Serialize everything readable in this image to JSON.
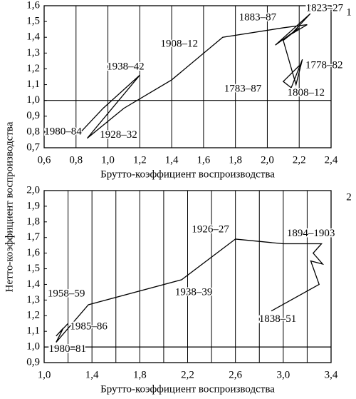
{
  "shared_ylabel": "Нетто-коэффициент воспроизводства",
  "chart_data": [
    {
      "type": "line",
      "panel_label": "1",
      "xlabel": "Брутто-коэффициент воспроизводства",
      "xlim": [
        0.6,
        2.4
      ],
      "xticks": [
        {
          "value": 0.6,
          "label": "0,6"
        },
        {
          "value": 0.8,
          "label": "0,8"
        },
        {
          "value": 1.0,
          "label": "1,0"
        },
        {
          "value": 1.2,
          "label": "1,2"
        },
        {
          "value": 1.4,
          "label": "1,4"
        },
        {
          "value": 1.6,
          "label": "1,6"
        },
        {
          "value": 1.8,
          "label": "1,8"
        },
        {
          "value": 2.0,
          "label": "2,0"
        },
        {
          "value": 2.2,
          "label": "2,2"
        },
        {
          "value": 2.4,
          "label": "2,4"
        }
      ],
      "ylim": [
        0.7,
        1.6
      ],
      "yticks": [
        {
          "value": 0.7,
          "label": "0,7"
        },
        {
          "value": 0.8,
          "label": "0,8"
        },
        {
          "value": 0.9,
          "label": "0,9"
        },
        {
          "value": 1.0,
          "label": "1,0"
        },
        {
          "value": 1.1,
          "label": "1,1"
        },
        {
          "value": 1.2,
          "label": "1,2"
        },
        {
          "value": 1.3,
          "label": "1,3"
        },
        {
          "value": 1.4,
          "label": "1,4"
        },
        {
          "value": 1.5,
          "label": "1,5"
        },
        {
          "value": 1.6,
          "label": "1,6"
        }
      ],
      "grid_x": true,
      "x_minor": [],
      "reference_line": 1.0,
      "color": "#000000",
      "x": [
        2.2,
        2.1,
        2.15,
        2.22,
        2.18,
        2.1,
        2.2,
        2.05,
        2.27,
        2.15,
        2.25,
        2.1,
        1.72,
        1.4,
        1.1,
        0.87,
        1.2,
        0.97,
        0.83
      ],
      "values": [
        1.22,
        1.12,
        1.08,
        1.26,
        1.1,
        1.38,
        1.46,
        1.35,
        1.55,
        1.42,
        1.48,
        1.46,
        1.4,
        1.13,
        0.95,
        0.76,
        1.16,
        0.95,
        0.8
      ],
      "point_labels": [
        "1778–82",
        null,
        "1783–87",
        null,
        "1808–12",
        null,
        null,
        null,
        "1823–27",
        null,
        null,
        "1883–87",
        "1908–12",
        null,
        null,
        "1928–32",
        "1938–42",
        null,
        "1980–84"
      ]
    },
    {
      "type": "line",
      "panel_label": "2",
      "xlabel": "Брутто-коэффициент воспроизводства",
      "xlim": [
        1.0,
        3.4
      ],
      "xticks": [
        {
          "value": 1.0,
          "label": "1,0"
        },
        {
          "value": 1.4,
          "label": "1,4"
        },
        {
          "value": 1.8,
          "label": "1,8"
        },
        {
          "value": 2.2,
          "label": "2,2"
        },
        {
          "value": 2.6,
          "label": "2,6"
        },
        {
          "value": 3.0,
          "label": "3,0"
        },
        {
          "value": 3.4,
          "label": "3,4"
        }
      ],
      "ylim": [
        0.9,
        2.0
      ],
      "yticks": [
        {
          "value": 0.9,
          "label": "0,9"
        },
        {
          "value": 1.0,
          "label": "1,0"
        },
        {
          "value": 1.1,
          "label": "1,1"
        },
        {
          "value": 1.2,
          "label": "1,2"
        },
        {
          "value": 1.3,
          "label": "1,3"
        },
        {
          "value": 1.4,
          "label": "1,4"
        },
        {
          "value": 1.5,
          "label": "1,5"
        },
        {
          "value": 1.6,
          "label": "1,6"
        },
        {
          "value": 1.7,
          "label": "1,7"
        },
        {
          "value": 1.8,
          "label": "1,8"
        },
        {
          "value": 1.9,
          "label": "1,9"
        },
        {
          "value": 2.0,
          "label": "2,0"
        }
      ],
      "grid_x": true,
      "x_minor": [
        1.2,
        1.6,
        2.0,
        2.4,
        2.8,
        3.2
      ],
      "reference_line": 1.0,
      "color": "#000000",
      "x": [
        2.9,
        3.3,
        3.23,
        3.33,
        3.25,
        3.32,
        3.0,
        2.6,
        2.15,
        1.37,
        1.1,
        1.16,
        1.1,
        1.2
      ],
      "values": [
        1.23,
        1.4,
        1.55,
        1.53,
        1.6,
        1.66,
        1.66,
        1.69,
        1.43,
        1.27,
        1.03,
        1.12,
        1.07,
        1.15
      ],
      "point_labels": [
        "1838–51",
        null,
        null,
        null,
        null,
        "1894–1903",
        null,
        "1926–27",
        "1938–39",
        "1958–59",
        "1980–81",
        null,
        null,
        "1985–86"
      ]
    }
  ]
}
